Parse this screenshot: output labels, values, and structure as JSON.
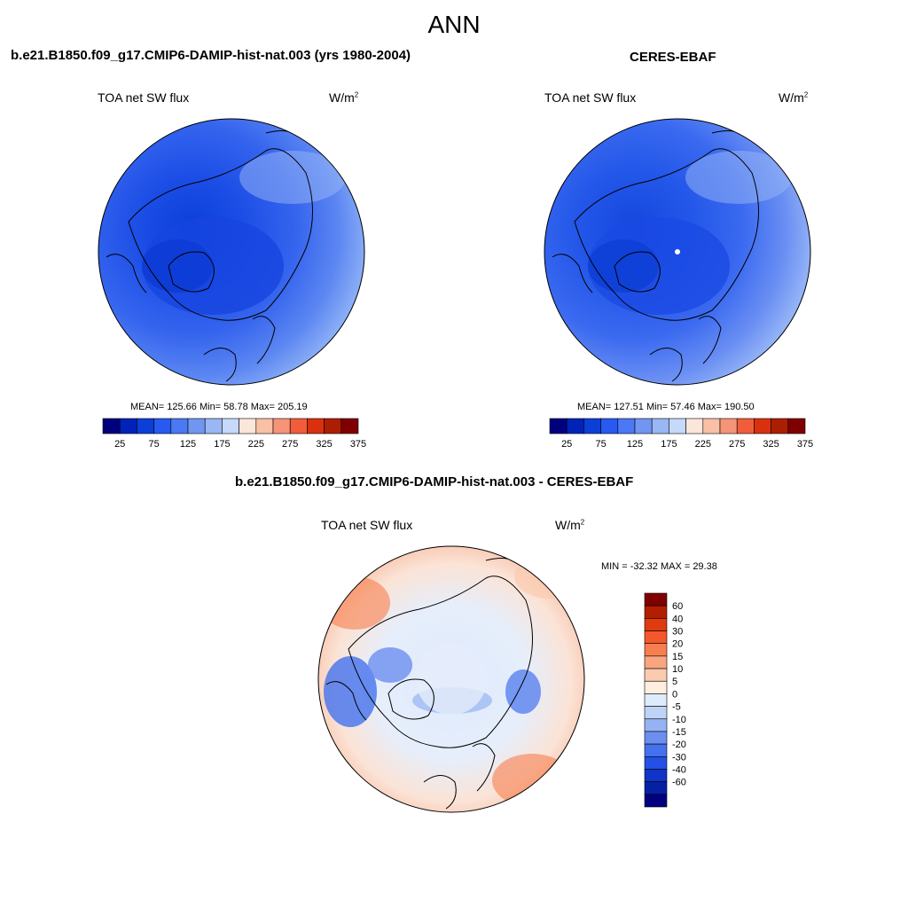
{
  "figure": {
    "season": "ANN",
    "colors": {
      "sequential": [
        "#00007f",
        "#0022b8",
        "#0b3fd9",
        "#2859f0",
        "#4b79f4",
        "#7196f2",
        "#99b6f5",
        "#c5d9fa",
        "#fbe6da",
        "#f9c0a6",
        "#f69477",
        "#f15d3a",
        "#d9310f",
        "#ac1e02",
        "#7f0000"
      ],
      "diverging": [
        "#7f0000",
        "#b21f00",
        "#df3a10",
        "#f4582a",
        "#f67f4f",
        "#f8a580",
        "#fbcbaf",
        "#fdeee0",
        "#deebfb",
        "#bfd3f7",
        "#95b3f3",
        "#6c8eef",
        "#4472ee",
        "#2450e6",
        "#1034c8",
        "#0620a3",
        "#000080"
      ],
      "coastline": "#000000"
    }
  },
  "panel_left": {
    "title": "b.e21.B1850.f09_g17.CMIP6-DAMIP-hist-nat.003 (yrs 1980-2004)",
    "variable": "TOA net SW flux",
    "units": "W/m",
    "units_exp": "2",
    "stats": "MEAN= 125.66  Min=  58.78  Max= 205.19",
    "colorbar_ticks": [
      "25",
      "75",
      "125",
      "175",
      "225",
      "275",
      "325",
      "375"
    ]
  },
  "panel_right": {
    "title": "CERES-EBAF",
    "variable": "TOA net SW flux",
    "units": "W/m",
    "units_exp": "2",
    "stats": "MEAN= 127.51  Min=  57.46  Max= 190.50",
    "colorbar_ticks": [
      "25",
      "75",
      "125",
      "175",
      "225",
      "275",
      "325",
      "375"
    ]
  },
  "panel_diff": {
    "title": "b.e21.B1850.f09_g17.CMIP6-DAMIP-hist-nat.003 - CERES-EBAF",
    "variable": "TOA net SW flux",
    "units": "W/m",
    "units_exp": "2",
    "stats": "MIN = -32.32 MAX =  29.38",
    "colorbar_ticks": [
      "60",
      "40",
      "30",
      "20",
      "15",
      "10",
      "5",
      "0",
      "-5",
      "-10",
      "-15",
      "-20",
      "-30",
      "-40",
      "-60"
    ]
  }
}
